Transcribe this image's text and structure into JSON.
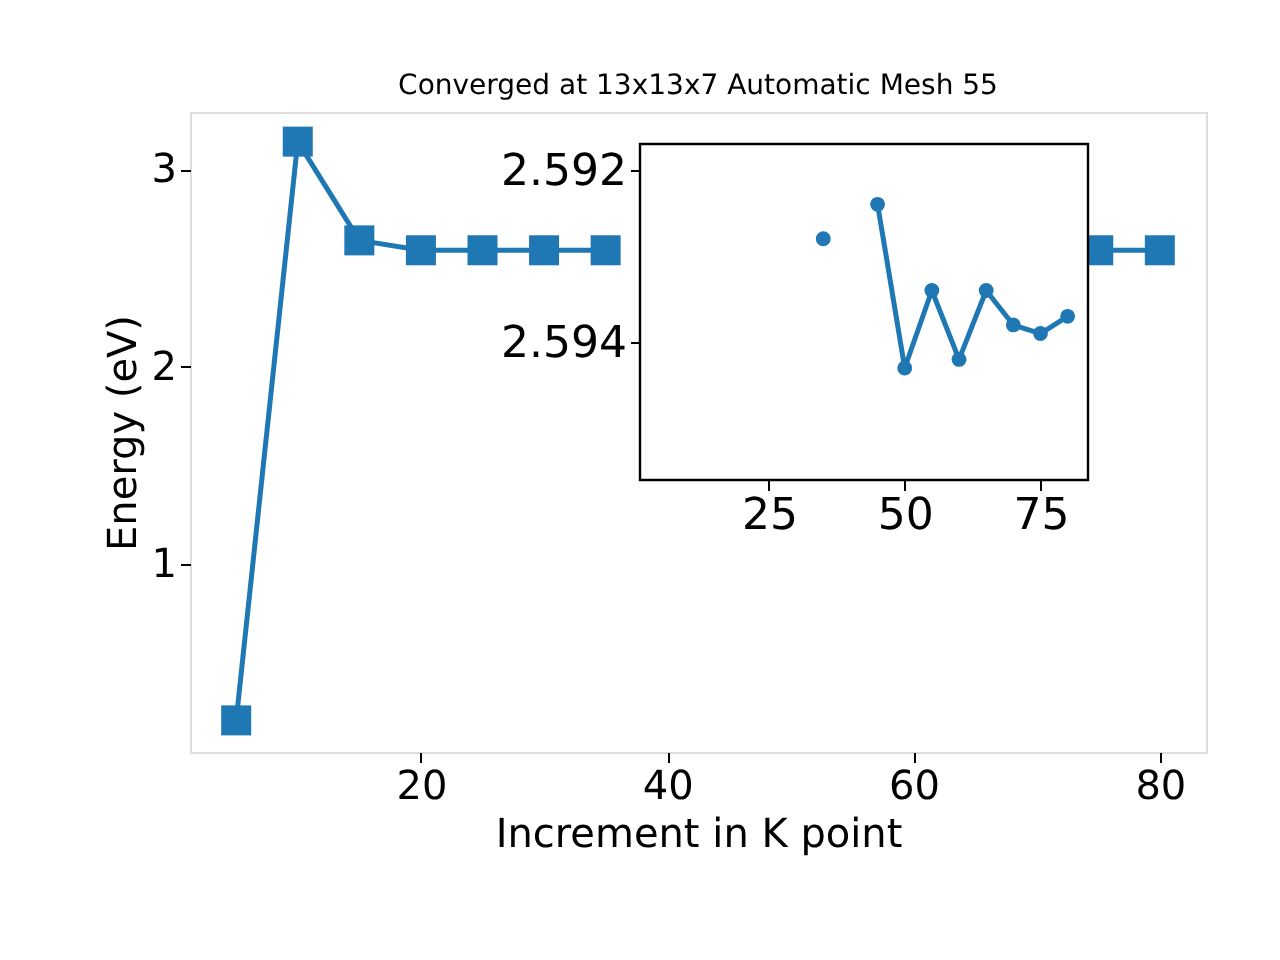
{
  "chart_data": [
    {
      "type": "line",
      "title": "Converged at 13x13x7 Automatic Mesh 55",
      "xlabel": "Increment in K point",
      "ylabel": "Energy (eV)",
      "x": [
        5,
        10,
        15,
        20,
        25,
        30,
        35,
        40,
        45,
        50,
        55,
        60,
        65,
        70,
        75,
        80
      ],
      "series": [
        {
          "color": "#1f77b4",
          "values": [
            0.21,
            3.14,
            2.64,
            2.59,
            2.59,
            2.59,
            2.59,
            null,
            null,
            null,
            null,
            null,
            null,
            null,
            2.59,
            2.59
          ]
        }
      ],
      "xlim": [
        1.25,
        83.75
      ],
      "ylim": [
        0.05,
        3.29
      ],
      "xticks": [
        20,
        40,
        60,
        80
      ],
      "yticks": [
        1,
        2,
        3
      ],
      "marker": "square",
      "grid": false
    },
    {
      "type": "line",
      "x": [
        35,
        40,
        45,
        50,
        55,
        60,
        65,
        70,
        75,
        80
      ],
      "series": [
        {
          "color": "#1f77b4",
          "values": [
            2.5928,
            null,
            2.5924,
            2.5943,
            2.5934,
            2.5942,
            2.5934,
            2.5938,
            2.5939,
            2.5937
          ]
        }
      ],
      "xlim": [
        1.25,
        83.75
      ],
      "ylim": [
        2.5956,
        2.5917
      ],
      "xticks": [
        25,
        50,
        75
      ],
      "yticks": [
        2.592,
        2.594
      ],
      "marker": "circle",
      "grid": false
    }
  ]
}
